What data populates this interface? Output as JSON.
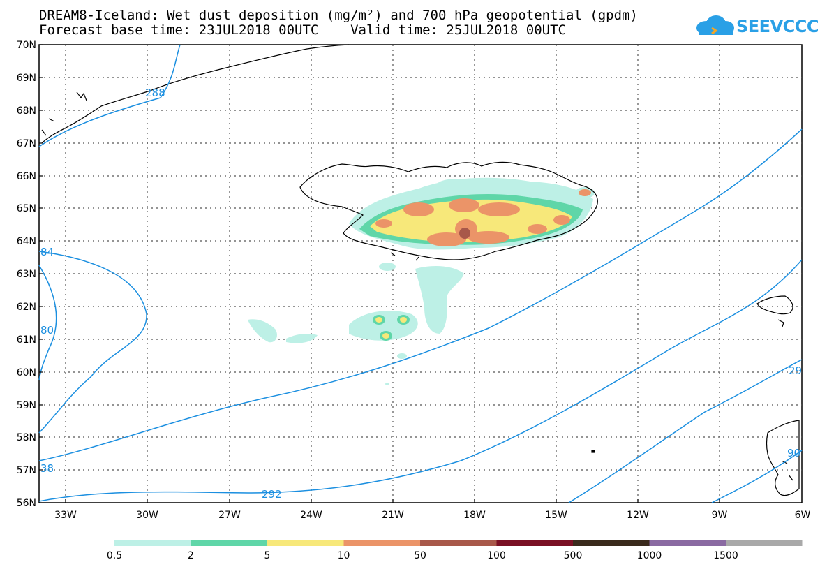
{
  "header": {
    "title_line1": "DREAM8-Iceland: Wet dust deposition (mg/m²) and 700 hPa geopotential (gpdm)",
    "title_line2": "Forecast base time: 23JUL2018 00UTC    Valid time: 25JUL2018 00UTC",
    "logo_text": "SEEVCCC"
  },
  "map": {
    "lat_labels": [
      "70N",
      "69N",
      "68N",
      "67N",
      "66N",
      "65N",
      "64N",
      "63N",
      "62N",
      "61N",
      "60N",
      "59N",
      "58N",
      "57N",
      "56N"
    ],
    "lon_labels": [
      "33W",
      "30W",
      "27W",
      "24W",
      "21W",
      "18W",
      "15W",
      "12W",
      "9W",
      "6W"
    ],
    "contour_labels": [
      "288",
      "84",
      "80",
      "38",
      "292",
      "29",
      "90"
    ],
    "colors": {
      "contour": "#1b8fe0",
      "coast": "#000000",
      "grid": "#555555"
    }
  },
  "colorbar": {
    "labels": [
      "0.5",
      "2",
      "5",
      "10",
      "50",
      "100",
      "500",
      "1000",
      "1500"
    ],
    "colors": [
      "#bdf0e6",
      "#5fd6a8",
      "#f7e87a",
      "#eb9468",
      "#a8584a",
      "#7a1024",
      "#3a2a1c",
      "#8a6aa2",
      "#a9a9a9"
    ]
  }
}
